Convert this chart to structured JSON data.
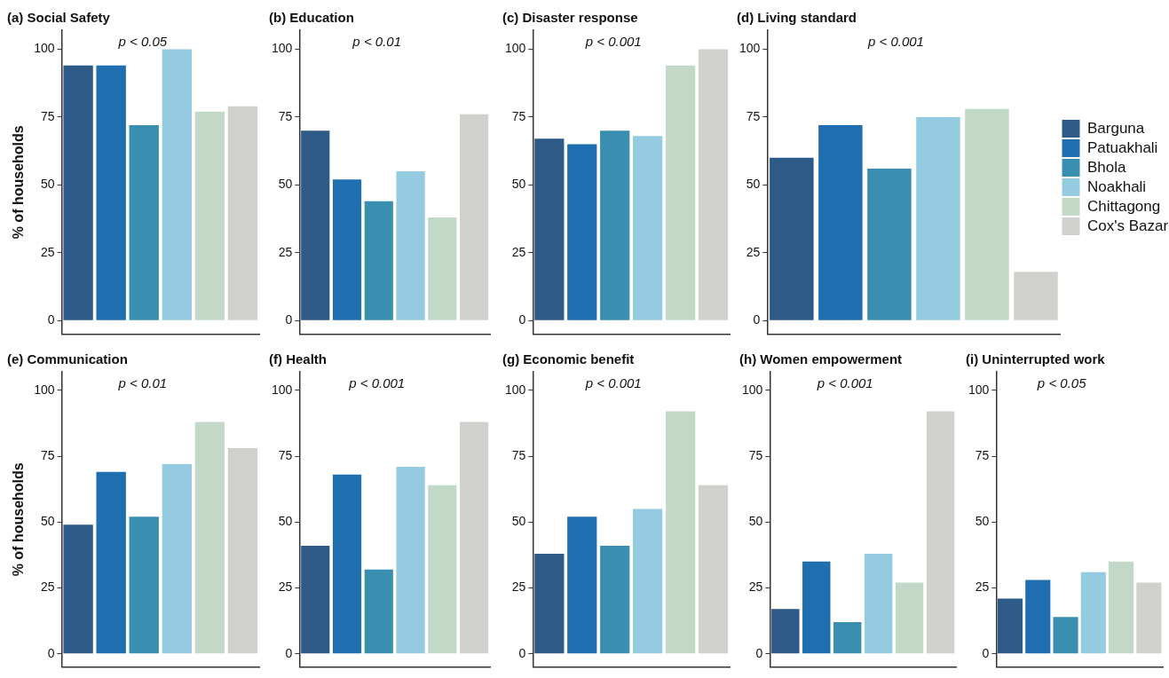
{
  "chart_data": [
    {
      "type": "bar",
      "title": "(a) Social Safety",
      "ylabel": "% of households",
      "categories": [
        null
      ],
      "series": [
        {
          "color": "#2e5a87",
          "values": [
            94
          ]
        },
        {
          "color": "#1f6fb0",
          "values": [
            94
          ]
        },
        {
          "color": "#3a8fb0",
          "values": [
            72
          ]
        },
        {
          "color": "#94cbe0",
          "values": [
            100
          ]
        },
        {
          "color": "#c2d9c8",
          "values": [
            77
          ]
        },
        {
          "color": "#d0d1cc",
          "values": [
            79
          ]
        }
      ],
      "ylim": [
        -5,
        107
      ],
      "yticks": [
        0,
        25,
        50,
        75,
        100
      ],
      "tick_labels": "y",
      "legend": false,
      "annotations": [
        "p < 0.05"
      ]
    },
    {
      "type": "bar",
      "title": "(b) Education",
      "categories": [
        null
      ],
      "series": [
        {
          "color": "#2e5a87",
          "values": [
            70
          ]
        },
        {
          "color": "#1f6fb0",
          "values": [
            52
          ]
        },
        {
          "color": "#3a8fb0",
          "values": [
            44
          ]
        },
        {
          "color": "#94cbe0",
          "values": [
            55
          ]
        },
        {
          "color": "#c2d9c8",
          "values": [
            38
          ]
        },
        {
          "color": "#d0d1cc",
          "values": [
            76
          ]
        }
      ],
      "ylim": [
        -5,
        107
      ],
      "yticks": [
        0,
        25,
        50,
        75,
        100
      ],
      "tick_labels": "y",
      "legend": false,
      "annotations": [
        "p < 0.01"
      ]
    },
    {
      "type": "bar",
      "title": "(c) Disaster response",
      "categories": [
        null
      ],
      "series": [
        {
          "color": "#2e5a87",
          "values": [
            67
          ]
        },
        {
          "color": "#1f6fb0",
          "values": [
            65
          ]
        },
        {
          "color": "#3a8fb0",
          "values": [
            70
          ]
        },
        {
          "color": "#94cbe0",
          "values": [
            68
          ]
        },
        {
          "color": "#c2d9c8",
          "values": [
            94
          ]
        },
        {
          "color": "#d0d1cc",
          "values": [
            100
          ]
        }
      ],
      "ylim": [
        -5,
        107
      ],
      "yticks": [
        0,
        25,
        50,
        75,
        100
      ],
      "tick_labels": "y",
      "legend": false,
      "annotations": [
        "p < 0.001"
      ]
    },
    {
      "type": "bar",
      "title": "(d) Living standard",
      "categories": [
        null
      ],
      "series": [
        {
          "name": "Barguna",
          "color": "#2e5a87",
          "values": [
            60
          ]
        },
        {
          "name": "Patuakhali",
          "color": "#1f6fb0",
          "values": [
            72
          ]
        },
        {
          "name": "Bhola",
          "color": "#3a8fb0",
          "values": [
            56
          ]
        },
        {
          "name": "Noakhali",
          "color": "#94cbe0",
          "values": [
            75
          ]
        },
        {
          "name": "Chittagong",
          "color": "#c2d9c8",
          "values": [
            78
          ]
        },
        {
          "name": "Cox's Bazar",
          "color": "#d0d1cc",
          "values": [
            18
          ]
        }
      ],
      "ylim": [
        -5,
        107
      ],
      "yticks": [
        0,
        25,
        50,
        75,
        100
      ],
      "tick_labels": "y",
      "legend": "right",
      "annotations": [
        "p < 0.001"
      ]
    },
    {
      "type": "bar",
      "title": "(e) Communication",
      "ylabel": "% of households",
      "categories": [
        null
      ],
      "series": [
        {
          "color": "#2e5a87",
          "values": [
            49
          ]
        },
        {
          "color": "#1f6fb0",
          "values": [
            69
          ]
        },
        {
          "color": "#3a8fb0",
          "values": [
            52
          ]
        },
        {
          "color": "#94cbe0",
          "values": [
            72
          ]
        },
        {
          "color": "#c2d9c8",
          "values": [
            88
          ]
        },
        {
          "color": "#d0d1cc",
          "values": [
            78
          ]
        }
      ],
      "ylim": [
        -5,
        107
      ],
      "yticks": [
        0,
        25,
        50,
        75,
        100
      ],
      "tick_labels": "y",
      "legend": false,
      "annotations": [
        "p < 0.01"
      ]
    },
    {
      "type": "bar",
      "title": "(f) Health",
      "categories": [
        null
      ],
      "series": [
        {
          "color": "#2e5a87",
          "values": [
            41
          ]
        },
        {
          "color": "#1f6fb0",
          "values": [
            68
          ]
        },
        {
          "color": "#3a8fb0",
          "values": [
            32
          ]
        },
        {
          "color": "#94cbe0",
          "values": [
            71
          ]
        },
        {
          "color": "#c2d9c8",
          "values": [
            64
          ]
        },
        {
          "color": "#d0d1cc",
          "values": [
            88
          ]
        }
      ],
      "ylim": [
        -5,
        107
      ],
      "yticks": [
        0,
        25,
        50,
        75,
        100
      ],
      "tick_labels": "y",
      "legend": false,
      "annotations": [
        "p < 0.001"
      ]
    },
    {
      "type": "bar",
      "title": "(g) Economic benefit",
      "categories": [
        null
      ],
      "series": [
        {
          "color": "#2e5a87",
          "values": [
            38
          ]
        },
        {
          "color": "#1f6fb0",
          "values": [
            52
          ]
        },
        {
          "color": "#3a8fb0",
          "values": [
            41
          ]
        },
        {
          "color": "#94cbe0",
          "values": [
            55
          ]
        },
        {
          "color": "#c2d9c8",
          "values": [
            92
          ]
        },
        {
          "color": "#d0d1cc",
          "values": [
            64
          ]
        }
      ],
      "ylim": [
        -5,
        107
      ],
      "yticks": [
        0,
        25,
        50,
        75,
        100
      ],
      "tick_labels": "y",
      "legend": false,
      "annotations": [
        "p < 0.001"
      ]
    },
    {
      "type": "bar",
      "title": "(h) Women empowerment",
      "categories": [
        null
      ],
      "series": [
        {
          "color": "#2e5a87",
          "values": [
            17
          ]
        },
        {
          "color": "#1f6fb0",
          "values": [
            35
          ]
        },
        {
          "color": "#3a8fb0",
          "values": [
            12
          ]
        },
        {
          "color": "#94cbe0",
          "values": [
            38
          ]
        },
        {
          "color": "#c2d9c8",
          "values": [
            27
          ]
        },
        {
          "color": "#d0d1cc",
          "values": [
            92
          ]
        }
      ],
      "ylim": [
        -5,
        107
      ],
      "yticks": [
        0,
        25,
        50,
        75,
        100
      ],
      "tick_labels": "y",
      "legend": false,
      "annotations": [
        "p < 0.001"
      ]
    },
    {
      "type": "bar",
      "title": "(i) Uninterrupted work",
      "categories": [
        null
      ],
      "series": [
        {
          "color": "#2e5a87",
          "values": [
            21
          ]
        },
        {
          "color": "#1f6fb0",
          "values": [
            28
          ]
        },
        {
          "color": "#3a8fb0",
          "values": [
            14
          ]
        },
        {
          "color": "#94cbe0",
          "values": [
            31
          ]
        },
        {
          "color": "#c2d9c8",
          "values": [
            35
          ]
        },
        {
          "color": "#d0d1cc",
          "values": [
            27
          ]
        }
      ],
      "ylim": [
        -5,
        107
      ],
      "yticks": [
        0,
        25,
        50,
        75,
        100
      ],
      "tick_labels": "y",
      "legend": false,
      "annotations": [
        "p < 0.05"
      ]
    }
  ]
}
